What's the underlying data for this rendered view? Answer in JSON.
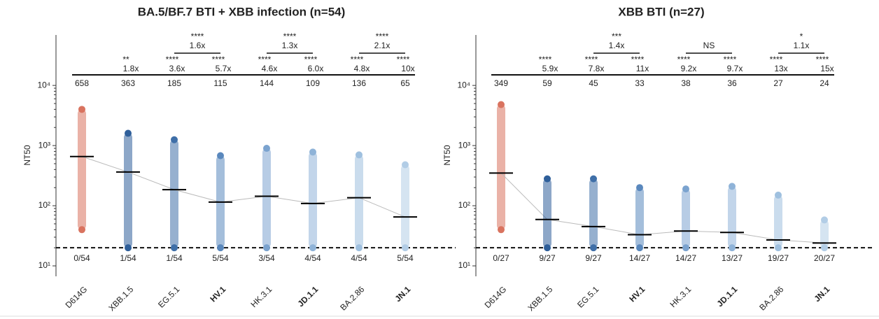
{
  "chart_data": [
    {
      "type": "strip",
      "title": "BA.5/BF.7 BTI + XBB infection (n=54)",
      "ylabel": "NT50",
      "categories": [
        "D614G",
        "XBB.1.5",
        "EG.5.1",
        "HV.1",
        "HK.3.1",
        "JD.1.1",
        "BA.2.86",
        "JN.1"
      ],
      "bold": [
        false,
        false,
        false,
        true,
        false,
        true,
        false,
        true
      ],
      "colors": [
        "#d9735f",
        "#2f5f9a",
        "#3f6fa8",
        "#5a88bd",
        "#7ba3cf",
        "#8fb3d8",
        "#9fc0df",
        "#b2cde6"
      ],
      "values": [
        658,
        363,
        185,
        115,
        144,
        109,
        136,
        65
      ],
      "ranges": [
        [
          40,
          4000
        ],
        [
          20,
          1600
        ],
        [
          20,
          1250
        ],
        [
          20,
          680
        ],
        [
          20,
          900
        ],
        [
          20,
          780
        ],
        [
          20,
          700
        ],
        [
          20,
          480
        ]
      ],
      "stars": [
        null,
        "**",
        "****",
        "****",
        "****",
        "****",
        "****",
        "****"
      ],
      "fold": [
        null,
        "1.8x",
        "3.6x",
        "5.7x",
        "4.6x",
        "6.0x",
        "4.8x",
        "10x"
      ],
      "brackets": [
        {
          "from": 2,
          "to": 3,
          "stars": "****",
          "fold": "1.6x"
        },
        {
          "from": 4,
          "to": 5,
          "stars": "****",
          "fold": "1.3x"
        },
        {
          "from": 6,
          "to": 7,
          "stars": "****",
          "fold": "2.1x"
        }
      ],
      "below_lod": [
        "0/54",
        "1/54",
        "1/54",
        "5/54",
        "3/54",
        "4/54",
        "4/54",
        "5/54"
      ],
      "lod": 20,
      "log_scale": true,
      "ylim": [
        6.7,
        69000
      ],
      "yticks": [
        {
          "value": 10,
          "label": "10¹"
        },
        {
          "value": 100,
          "label": "10²"
        },
        {
          "value": 1000,
          "label": "10³"
        },
        {
          "value": 10000,
          "label": "10⁴"
        }
      ]
    },
    {
      "type": "strip",
      "title": "XBB BTI (n=27)",
      "ylabel": "NT50",
      "categories": [
        "D614G",
        "XBB.1.5",
        "EG.5.1",
        "HV.1",
        "HK.3.1",
        "JD.1.1",
        "BA.2.86",
        "JN.1"
      ],
      "bold": [
        false,
        false,
        false,
        true,
        false,
        true,
        false,
        true
      ],
      "colors": [
        "#d9735f",
        "#2f5f9a",
        "#3f6fa8",
        "#5a88bd",
        "#7ba3cf",
        "#8fb3d8",
        "#9fc0df",
        "#b2cde6"
      ],
      "values": [
        349,
        59,
        45,
        33,
        38,
        36,
        27,
        24
      ],
      "ranges": [
        [
          40,
          4800
        ],
        [
          20,
          280
        ],
        [
          20,
          280
        ],
        [
          20,
          200
        ],
        [
          20,
          190
        ],
        [
          20,
          210
        ],
        [
          20,
          150
        ],
        [
          20,
          58
        ]
      ],
      "stars": [
        null,
        "****",
        "****",
        "****",
        "****",
        "****",
        "****",
        "****"
      ],
      "fold": [
        null,
        "5.9x",
        "7.8x",
        "11x",
        "9.2x",
        "9.7x",
        "13x",
        "15x"
      ],
      "brackets": [
        {
          "from": 2,
          "to": 3,
          "stars": "***",
          "fold": "1.4x"
        },
        {
          "from": 4,
          "to": 5,
          "stars": "NS"
        },
        {
          "from": 6,
          "to": 7,
          "stars": "*",
          "fold": "1.1x"
        }
      ],
      "below_lod": [
        "0/27",
        "9/27",
        "9/27",
        "14/27",
        "14/27",
        "13/27",
        "19/27",
        "20/27"
      ],
      "lod": 20,
      "log_scale": true,
      "ylim": [
        6.7,
        69000
      ],
      "yticks": [
        {
          "value": 10,
          "label": "10¹"
        },
        {
          "value": 100,
          "label": "10²"
        },
        {
          "value": 1000,
          "label": "10³"
        },
        {
          "value": 10000,
          "label": "10⁴"
        }
      ]
    }
  ]
}
